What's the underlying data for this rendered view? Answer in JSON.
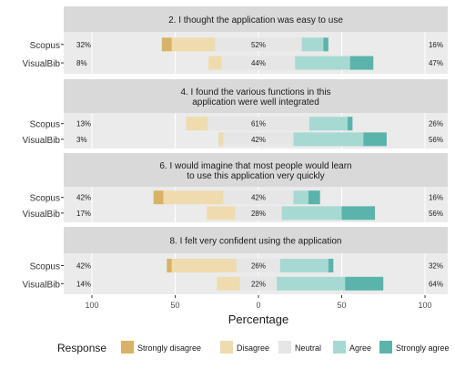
{
  "chart_data": {
    "type": "bar",
    "subtype": "diverging-stacked-likert",
    "xlabel": "Percentage",
    "x_ticks": [
      {
        "value": -100,
        "label": "100"
      },
      {
        "value": -50,
        "label": "50"
      },
      {
        "value": 0,
        "label": "0"
      },
      {
        "value": 50,
        "label": "50"
      },
      {
        "value": 100,
        "label": "100"
      }
    ],
    "xlim": [
      -100,
      100
    ],
    "legend": {
      "title": "Response",
      "position": "bottom",
      "items": [
        {
          "name": "Strongly disagree",
          "color": "#d8b365"
        },
        {
          "name": "Disagree",
          "color": "#efdcae"
        },
        {
          "name": "Neutral",
          "color": "#e6e6e6"
        },
        {
          "name": "Agree",
          "color": "#a7d9d3"
        },
        {
          "name": "Strongly agree",
          "color": "#5ab4ac"
        }
      ]
    },
    "panels": [
      {
        "title_lines": [
          "2. I thought the application was easy to use"
        ],
        "rows": [
          {
            "label": "Scopus",
            "left_pct": "32%",
            "neutral_pct": "52%",
            "right_pct": "16%",
            "values": [
              6,
              26,
              52,
              13,
              3
            ]
          },
          {
            "label": "VisualBib",
            "left_pct": "8%",
            "neutral_pct": "44%",
            "right_pct": "47%",
            "values": [
              0,
              8,
              44,
              33,
              14
            ]
          }
        ]
      },
      {
        "title_lines": [
          "4. I found the various functions in this",
          "application were well integrated"
        ],
        "rows": [
          {
            "label": "Scopus",
            "left_pct": "13%",
            "neutral_pct": "61%",
            "right_pct": "26%",
            "values": [
              0,
              13,
              61,
              23,
              3
            ]
          },
          {
            "label": "VisualBib",
            "left_pct": "3%",
            "neutral_pct": "42%",
            "right_pct": "56%",
            "values": [
              0,
              3,
              42,
              42,
              14
            ]
          }
        ]
      },
      {
        "title_lines": [
          "6. I would imagine that most people would learn",
          "to use this application very quickly"
        ],
        "rows": [
          {
            "label": "Scopus",
            "left_pct": "42%",
            "neutral_pct": "42%",
            "right_pct": "16%",
            "values": [
              6,
              36,
              42,
              9,
              7
            ]
          },
          {
            "label": "VisualBib",
            "left_pct": "17%",
            "neutral_pct": "28%",
            "right_pct": "56%",
            "values": [
              0,
              17,
              28,
              36,
              20
            ]
          }
        ]
      },
      {
        "title_lines": [
          "8. I felt very confident using the application"
        ],
        "rows": [
          {
            "label": "Scopus",
            "left_pct": "42%",
            "neutral_pct": "26%",
            "right_pct": "32%",
            "values": [
              3,
              39,
              26,
              29,
              3
            ]
          },
          {
            "label": "VisualBib",
            "left_pct": "14%",
            "neutral_pct": "22%",
            "right_pct": "64%",
            "values": [
              0,
              14,
              22,
              41,
              23
            ]
          }
        ]
      }
    ]
  }
}
